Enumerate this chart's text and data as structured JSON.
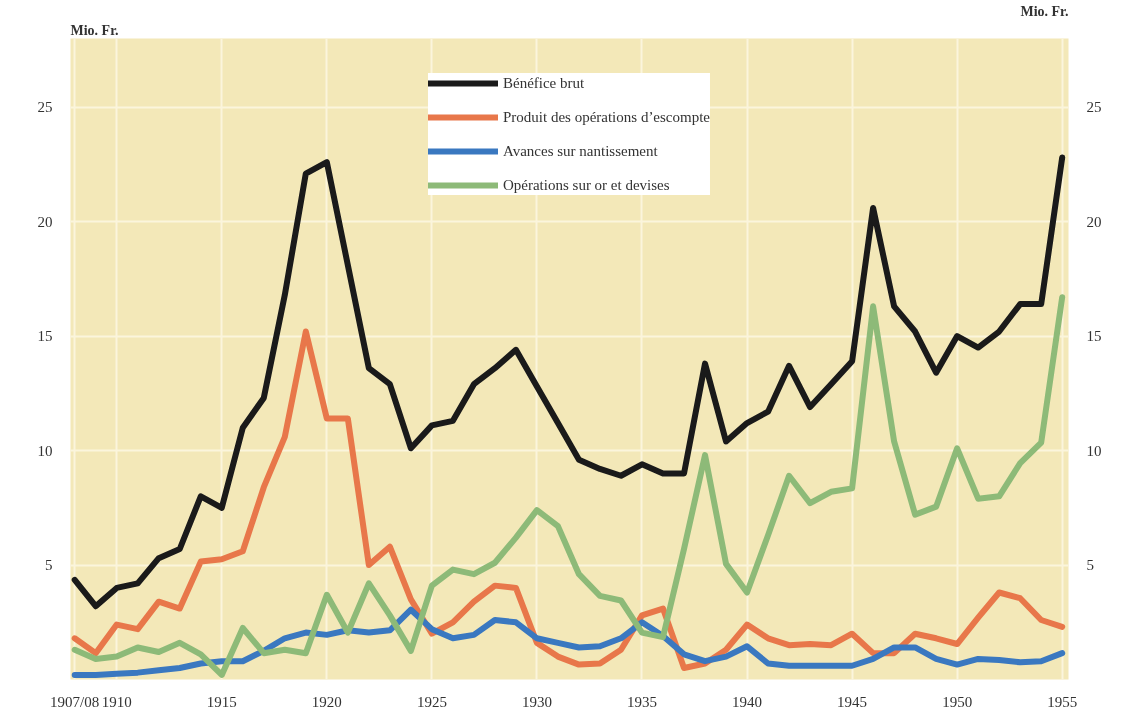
{
  "chart_data": {
    "type": "line",
    "ylabel": "Mio. Fr.",
    "y2label": "Mio. Fr.",
    "x": [
      1908,
      1909,
      1910,
      1911,
      1912,
      1913,
      1914,
      1915,
      1916,
      1917,
      1918,
      1919,
      1920,
      1921,
      1922,
      1923,
      1924,
      1925,
      1926,
      1927,
      1928,
      1929,
      1930,
      1931,
      1932,
      1933,
      1934,
      1935,
      1936,
      1937,
      1938,
      1939,
      1940,
      1941,
      1942,
      1943,
      1944,
      1945,
      1946,
      1947,
      1948,
      1949,
      1950,
      1951,
      1952,
      1953,
      1954,
      1955
    ],
    "series": [
      {
        "name": "Bénéfice brut",
        "color": "#1a1a1a",
        "values": [
          4.35,
          3.2,
          4.0,
          4.2,
          5.3,
          5.7,
          8.0,
          7.5,
          11.0,
          12.3,
          16.8,
          22.1,
          22.6,
          18.1,
          13.6,
          12.9,
          10.1,
          11.1,
          11.3,
          12.9,
          13.6,
          14.4,
          12.8,
          11.2,
          9.6,
          9.2,
          8.9,
          9.4,
          9.0,
          9.0,
          13.8,
          10.4,
          11.2,
          11.7,
          13.7,
          11.9,
          12.9,
          13.9,
          20.6,
          16.3,
          15.2,
          13.4,
          15.0,
          14.5,
          15.2,
          16.4,
          16.4,
          22.8
        ]
      },
      {
        "name": "Produit des opérations d’escompte",
        "color": "#e8774a",
        "values": [
          1.8,
          1.15,
          2.4,
          2.2,
          3.4,
          3.1,
          5.15,
          5.25,
          5.6,
          8.4,
          10.6,
          15.2,
          11.4,
          11.4,
          5.0,
          5.8,
          3.5,
          2.0,
          2.5,
          3.4,
          4.1,
          4.0,
          1.6,
          1.0,
          0.65,
          0.7,
          1.3,
          2.8,
          3.1,
          0.5,
          0.7,
          1.3,
          2.4,
          1.8,
          1.5,
          1.55,
          1.5,
          2.0,
          1.15,
          1.15,
          2.0,
          1.8,
          1.55,
          2.7,
          3.8,
          3.55,
          2.6,
          2.3
        ]
      },
      {
        "name": "Avances sur nantissement",
        "color": "#3a78c0",
        "values": [
          0.2,
          0.2,
          0.25,
          0.3,
          0.4,
          0.5,
          0.7,
          0.8,
          0.8,
          1.25,
          1.8,
          2.05,
          1.95,
          2.15,
          2.05,
          2.15,
          3.05,
          2.2,
          1.8,
          1.95,
          2.6,
          2.5,
          1.8,
          1.6,
          1.4,
          1.45,
          1.8,
          2.5,
          1.9,
          1.1,
          0.8,
          1.0,
          1.45,
          0.7,
          0.6,
          0.6,
          0.6,
          0.6,
          0.9,
          1.4,
          1.4,
          0.9,
          0.65,
          0.9,
          0.85,
          0.75,
          0.8,
          1.15
        ]
      },
      {
        "name": "Opérations sur or et devises",
        "color": "#8dba78",
        "values": [
          1.3,
          0.9,
          1.0,
          1.4,
          1.2,
          1.6,
          1.1,
          0.2,
          2.25,
          1.15,
          1.3,
          1.15,
          3.7,
          2.05,
          4.2,
          2.8,
          1.25,
          4.1,
          4.8,
          4.6,
          5.1,
          6.2,
          7.4,
          6.7,
          4.6,
          3.65,
          3.45,
          2.05,
          1.85,
          5.7,
          9.8,
          5.05,
          3.8,
          6.3,
          8.9,
          7.7,
          8.2,
          8.35,
          16.3,
          10.4,
          7.2,
          7.55,
          10.1,
          7.9,
          8.0,
          9.45,
          10.35,
          16.7
        ]
      }
    ],
    "xlim": [
      1907.8,
      1955.3
    ],
    "xticks": [
      {
        "value": 1908,
        "label": "1907/08"
      },
      1910,
      1915,
      1920,
      1925,
      1930,
      1935,
      1940,
      1945,
      1950,
      1955
    ],
    "ylim": [
      0,
      28
    ],
    "yticks": [
      5,
      10,
      15,
      20,
      25
    ],
    "y2lim": [
      0,
      28
    ],
    "y2ticks": [
      5,
      10,
      15,
      20,
      25
    ],
    "grid": true,
    "legend": "top",
    "marker": "none",
    "line_style": "solid"
  }
}
